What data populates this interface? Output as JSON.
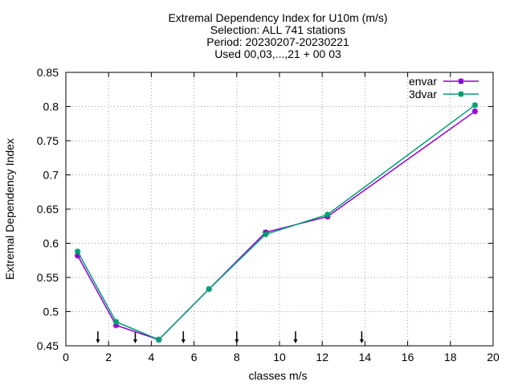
{
  "chart_data": {
    "type": "line",
    "title_lines": [
      "Extremal Dependency Index  for U10m (m/s)",
      "Selection: ALL    741 stations",
      "Period: 20230207-20230221",
      "Used 00,03,...,21 + 00 03"
    ],
    "xlabel": "classes m/s",
    "ylabel": "Extremal Dependency Index",
    "xlim": [
      0,
      20
    ],
    "ylim": [
      0.45,
      0.85
    ],
    "x_ticks": [
      0,
      2,
      4,
      6,
      8,
      10,
      12,
      14,
      16,
      18,
      20
    ],
    "y_ticks": [
      0.45,
      0.5,
      0.55,
      0.6,
      0.65,
      0.7,
      0.75,
      0.8,
      0.85
    ],
    "x_tick_labels": [
      "0",
      "2",
      "4",
      "6",
      "8",
      "10",
      "12",
      "14",
      "16",
      "18",
      "20"
    ],
    "y_tick_labels": [
      "0.45",
      "0.5",
      "0.55",
      "0.6",
      "0.65",
      "0.7",
      "0.75",
      "0.8",
      "0.85"
    ],
    "grid": true,
    "legend_position": "top-right",
    "threshold_arrows_x": [
      1.5,
      3.25,
      5.5,
      8.0,
      10.75,
      13.85
    ],
    "series": [
      {
        "name": "envar",
        "color": "#9400d3",
        "x": [
          0.55,
          2.35,
          4.35,
          6.7,
          9.35,
          12.25,
          19.15
        ],
        "y": [
          0.582,
          0.48,
          0.459,
          0.533,
          0.616,
          0.639,
          0.793
        ]
      },
      {
        "name": "3dvar",
        "color": "#009e73",
        "x": [
          0.55,
          2.35,
          4.35,
          6.7,
          9.35,
          12.25,
          19.15
        ],
        "y": [
          0.588,
          0.485,
          0.459,
          0.533,
          0.613,
          0.642,
          0.802
        ]
      }
    ]
  }
}
